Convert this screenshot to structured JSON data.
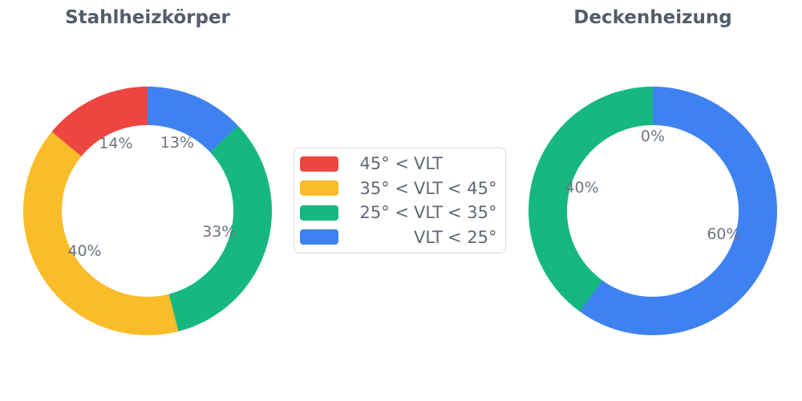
{
  "figure": {
    "background": "#ffffff",
    "title_color": "#535C6A",
    "percent_label_color": "#6C7480",
    "legend_text_color": "#5F6874",
    "legend_border_color": "#D9DCE0"
  },
  "chart_data": [
    {
      "type": "pie",
      "title": "Stahlheizkörper",
      "hole_ratio": 0.69,
      "direction": "counterclockwise",
      "start_angle": "top",
      "labels": [
        "45° < VLT",
        "35° < VLT < 45°",
        "25° < VLT < 35°",
        "VLT < 25°"
      ],
      "values": [
        14,
        40,
        33,
        13
      ],
      "percent_labels": [
        "14%",
        "40%",
        "33%",
        "13%"
      ],
      "colors": [
        "#EE4540",
        "#FABC28",
        "#16B87F",
        "#3E82F1"
      ]
    },
    {
      "type": "pie",
      "title": "Deckenheizung",
      "hole_ratio": 0.69,
      "direction": "counterclockwise",
      "start_angle": "top",
      "labels": [
        "45° < VLT",
        "35° < VLT < 45°",
        "25° < VLT < 35°",
        "VLT < 25°"
      ],
      "values": [
        0,
        0,
        40,
        60
      ],
      "percent_labels": [
        "0%",
        "0%",
        "40%",
        "60%"
      ],
      "colors": [
        "#EE4540",
        "#FABC28",
        "#16B87F",
        "#3E82F1"
      ]
    }
  ],
  "legend": {
    "items": [
      {
        "label": "45° < VLT",
        "prefix": "45° <",
        "mid": "VLT",
        "suffix": "",
        "color": "#EE4540"
      },
      {
        "label": "35° < VLT < 45°",
        "prefix": "35° <",
        "mid": "VLT",
        "suffix": "< 45°",
        "color": "#FABC28"
      },
      {
        "label": "25° < VLT < 35°",
        "prefix": "25° <",
        "mid": "VLT",
        "suffix": "< 35°",
        "color": "#16B87F"
      },
      {
        "label": "VLT < 25°",
        "prefix": "",
        "mid": "VLT",
        "suffix": "< 25°",
        "color": "#3E82F1"
      }
    ]
  }
}
